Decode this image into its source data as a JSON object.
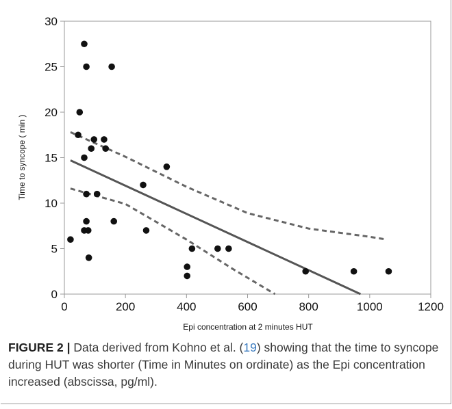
{
  "chart_data": {
    "type": "scatter",
    "xlabel": "Epi concentration at 2 minutes HUT",
    "ylabel": "Time to syncope ( min )",
    "xlim": [
      0,
      1200
    ],
    "ylim": [
      0,
      30
    ],
    "xticks": [
      0,
      200,
      400,
      600,
      800,
      1000,
      1200
    ],
    "yticks": [
      0,
      5,
      10,
      15,
      20,
      25,
      30
    ],
    "grid": false,
    "points": [
      {
        "x": 20,
        "y": 6
      },
      {
        "x": 45,
        "y": 17.5
      },
      {
        "x": 50,
        "y": 20
      },
      {
        "x": 65,
        "y": 27.5
      },
      {
        "x": 65,
        "y": 15
      },
      {
        "x": 65,
        "y": 7
      },
      {
        "x": 72,
        "y": 25
      },
      {
        "x": 72,
        "y": 11
      },
      {
        "x": 72,
        "y": 8
      },
      {
        "x": 78,
        "y": 7
      },
      {
        "x": 80,
        "y": 4
      },
      {
        "x": 88,
        "y": 16
      },
      {
        "x": 97,
        "y": 17
      },
      {
        "x": 107,
        "y": 11
      },
      {
        "x": 130,
        "y": 17
      },
      {
        "x": 135,
        "y": 16
      },
      {
        "x": 155,
        "y": 25
      },
      {
        "x": 162,
        "y": 8
      },
      {
        "x": 258,
        "y": 12
      },
      {
        "x": 268,
        "y": 7
      },
      {
        "x": 335,
        "y": 14
      },
      {
        "x": 402,
        "y": 3
      },
      {
        "x": 402,
        "y": 2
      },
      {
        "x": 418,
        "y": 5
      },
      {
        "x": 502,
        "y": 5
      },
      {
        "x": 538,
        "y": 5
      },
      {
        "x": 790,
        "y": 2.5
      },
      {
        "x": 948,
        "y": 2.5
      },
      {
        "x": 1062,
        "y": 2.5
      }
    ],
    "regression_line": [
      [
        20,
        14.7
      ],
      [
        970,
        0
      ]
    ],
    "confidence_bands": [
      [
        [
          20,
          17.8
        ],
        [
          200,
          15.1
        ],
        [
          400,
          11.8
        ],
        [
          600,
          8.9
        ],
        [
          800,
          7.2
        ],
        [
          1000,
          6.3
        ],
        [
          1055,
          6.0
        ]
      ],
      [
        [
          20,
          11.6
        ],
        [
          200,
          9.9
        ],
        [
          400,
          6.0
        ],
        [
          550,
          2.8
        ],
        [
          690,
          0
        ]
      ]
    ],
    "colors": {
      "points": "#111111",
      "fit_line": "#555555",
      "band": "#666666",
      "axis": "#9a9a9a"
    }
  },
  "caption": {
    "label": "FIGURE 2 |",
    "text_before_ref": "Data derived from Kohno et al. (",
    "ref": "19",
    "text_after_ref": ") showing that the time to syncope during HUT was shorter (Time in Minutes on ordinate) as the Epi concentration increased (abscissa, pg/ml)."
  }
}
